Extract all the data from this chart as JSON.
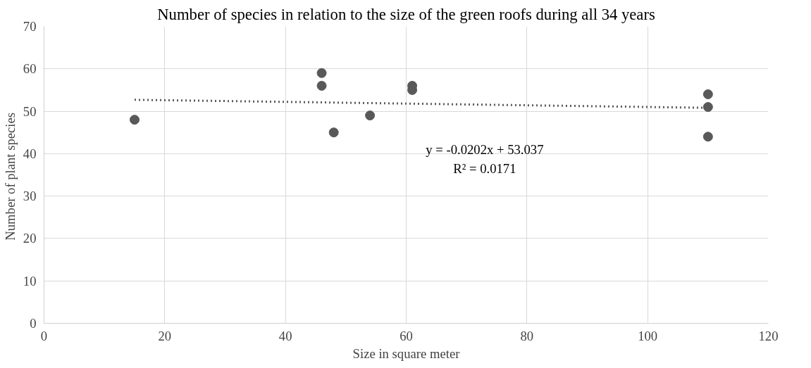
{
  "chart_data": {
    "type": "scatter",
    "title": "Number of species in relation to the size of the green roofs during all 34 years",
    "xlabel": "Size in square meter",
    "ylabel": "Number of  plant species",
    "series": [
      {
        "color": "#595959",
        "x": [
          15,
          46,
          46,
          48,
          54,
          61,
          61,
          110,
          110,
          110
        ],
        "values": [
          48,
          59,
          56,
          45,
          49,
          56,
          55,
          54,
          51,
          44
        ],
        "marker": "circle"
      },
      {
        "type": "line",
        "color": "#595959",
        "x": [
          15,
          110
        ],
        "values": [
          52.7,
          50.8
        ],
        "line_style": "dotted"
      }
    ],
    "annotations": [
      "y = -0.0202x + 53.037",
      "R² = 0.0171"
    ],
    "xlim": [
      0,
      120
    ],
    "xticks": [
      0,
      20,
      40,
      60,
      80,
      100,
      120
    ],
    "ylim": [
      0,
      70
    ],
    "yticks": [
      0,
      10,
      20,
      30,
      40,
      50,
      60,
      70
    ],
    "grid": true
  }
}
